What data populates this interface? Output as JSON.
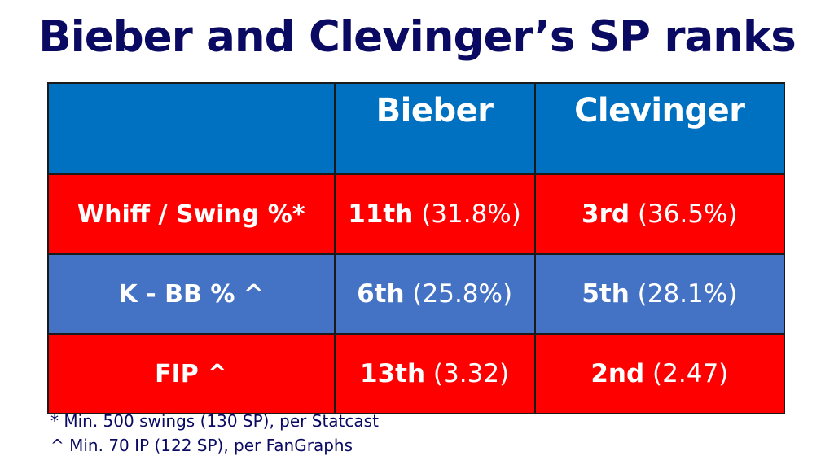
{
  "title": "Bieber and Clevinger’s SP ranks",
  "table": {
    "headers": [
      "",
      "Bieber",
      "Clevinger"
    ],
    "rows": [
      {
        "metric": "Whiff / Swing %*",
        "bieber_rank": "11th",
        "bieber_value": "(31.8%)",
        "clevinger_rank": "3rd",
        "clevinger_value": "(36.5%)"
      },
      {
        "metric": "K - BB % ^",
        "bieber_rank": "6th",
        "bieber_value": "(25.8%)",
        "clevinger_rank": "5th",
        "clevinger_value": "(28.1%)"
      },
      {
        "metric": "FIP ^",
        "bieber_rank": "13th",
        "bieber_value": "(3.32)",
        "clevinger_rank": "2nd",
        "clevinger_value": "(2.47)"
      }
    ]
  },
  "footnotes": [
    "* Min. 500 swings (130 SP), per Statcast",
    "^ Min. 70 IP (122 SP), per FanGraphs"
  ],
  "colors": {
    "title": "#0a0a63",
    "header_bg": "#0070c0",
    "red_row": "#ff0000",
    "blue_row": "#4472c4"
  }
}
